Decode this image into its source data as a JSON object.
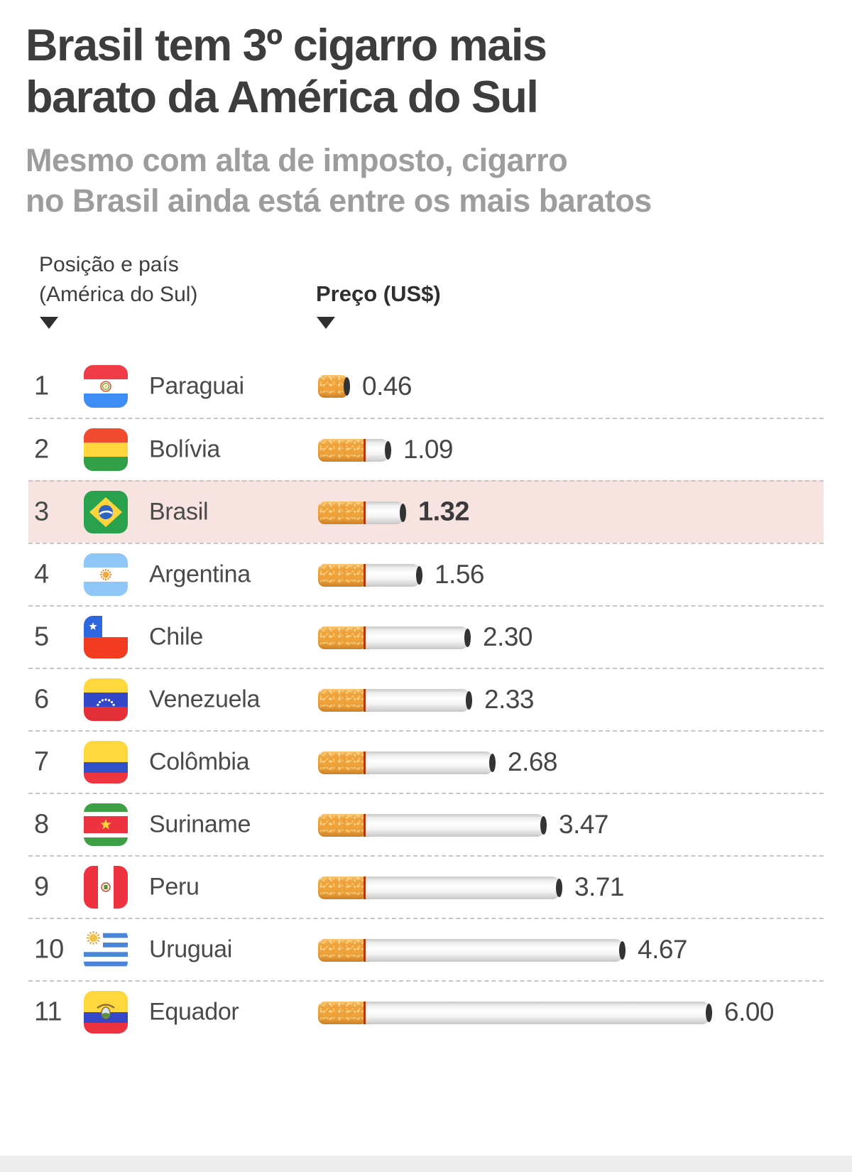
{
  "page": {
    "title": "Brasil tem 3º cigarro mais\nbarato da América do Sul",
    "subtitle": "Mesmo com alta de imposto, cigarro\nno Brasil ainda está entre os mais baratos"
  },
  "table": {
    "col_position": "Posição e país\n(América do Sul)",
    "col_price": "Preço (US$)",
    "sort_icon": "triangle-down"
  },
  "chart_data": {
    "type": "bar",
    "orientation": "horizontal",
    "title": "Brasil tem 3º cigarro mais barato da América do Sul",
    "subtitle": "Mesmo com alta de imposto, cigarro no Brasil ainda está entre os mais baratos",
    "unit": "US$",
    "xlabel": "Preço (US$)",
    "ylabel": "Posição e país (América do Sul)",
    "categories": [
      "Paraguai",
      "Bolívia",
      "Brasil",
      "Argentina",
      "Chile",
      "Venezuela",
      "Colômbia",
      "Suriname",
      "Peru",
      "Uruguai",
      "Equador"
    ],
    "values": [
      0.46,
      1.09,
      1.32,
      1.56,
      2.3,
      2.33,
      2.68,
      3.47,
      3.71,
      4.67,
      6.0
    ],
    "highlight_category": "Brasil",
    "xlim": [
      0,
      6.5
    ],
    "grid": false,
    "legend": false
  },
  "rows": [
    {
      "rank": "1",
      "country": "Paraguai",
      "price": "0.46",
      "value": 0.46,
      "flag": "paraguay",
      "highlight": false
    },
    {
      "rank": "2",
      "country": "Bolívia",
      "price": "1.09",
      "value": 1.09,
      "flag": "bolivia",
      "highlight": false
    },
    {
      "rank": "3",
      "country": "Brasil",
      "price": "1.32",
      "value": 1.32,
      "flag": "brazil",
      "highlight": true
    },
    {
      "rank": "4",
      "country": "Argentina",
      "price": "1.56",
      "value": 1.56,
      "flag": "argentina",
      "highlight": false
    },
    {
      "rank": "5",
      "country": "Chile",
      "price": "2.30",
      "value": 2.3,
      "flag": "chile",
      "highlight": false
    },
    {
      "rank": "6",
      "country": "Venezuela",
      "price": "2.33",
      "value": 2.33,
      "flag": "venezuela",
      "highlight": false
    },
    {
      "rank": "7",
      "country": "Colômbia",
      "price": "2.68",
      "value": 2.68,
      "flag": "colombia",
      "highlight": false
    },
    {
      "rank": "8",
      "country": "Suriname",
      "price": "3.47",
      "value": 3.47,
      "flag": "suriname",
      "highlight": false
    },
    {
      "rank": "9",
      "country": "Peru",
      "price": "3.71",
      "value": 3.71,
      "flag": "peru",
      "highlight": false
    },
    {
      "rank": "10",
      "country": "Uruguai",
      "price": "4.67",
      "value": 4.67,
      "flag": "uruguay",
      "highlight": false
    },
    {
      "rank": "11",
      "country": "Equador",
      "price": "6.00",
      "value": 6.0,
      "flag": "ecuador",
      "highlight": false
    }
  ],
  "colors": {
    "title": "#3d3d3d",
    "subtitle": "#9d9d9d",
    "text": "#484848",
    "separator": "#c6c6c6",
    "highlight_row_bg": "#f7e4e1",
    "cigarette_filter": "#efa23b",
    "cigarette_ring": "#b23908",
    "cigarette_cap": "#333333",
    "footer_bar": "#ededed"
  }
}
